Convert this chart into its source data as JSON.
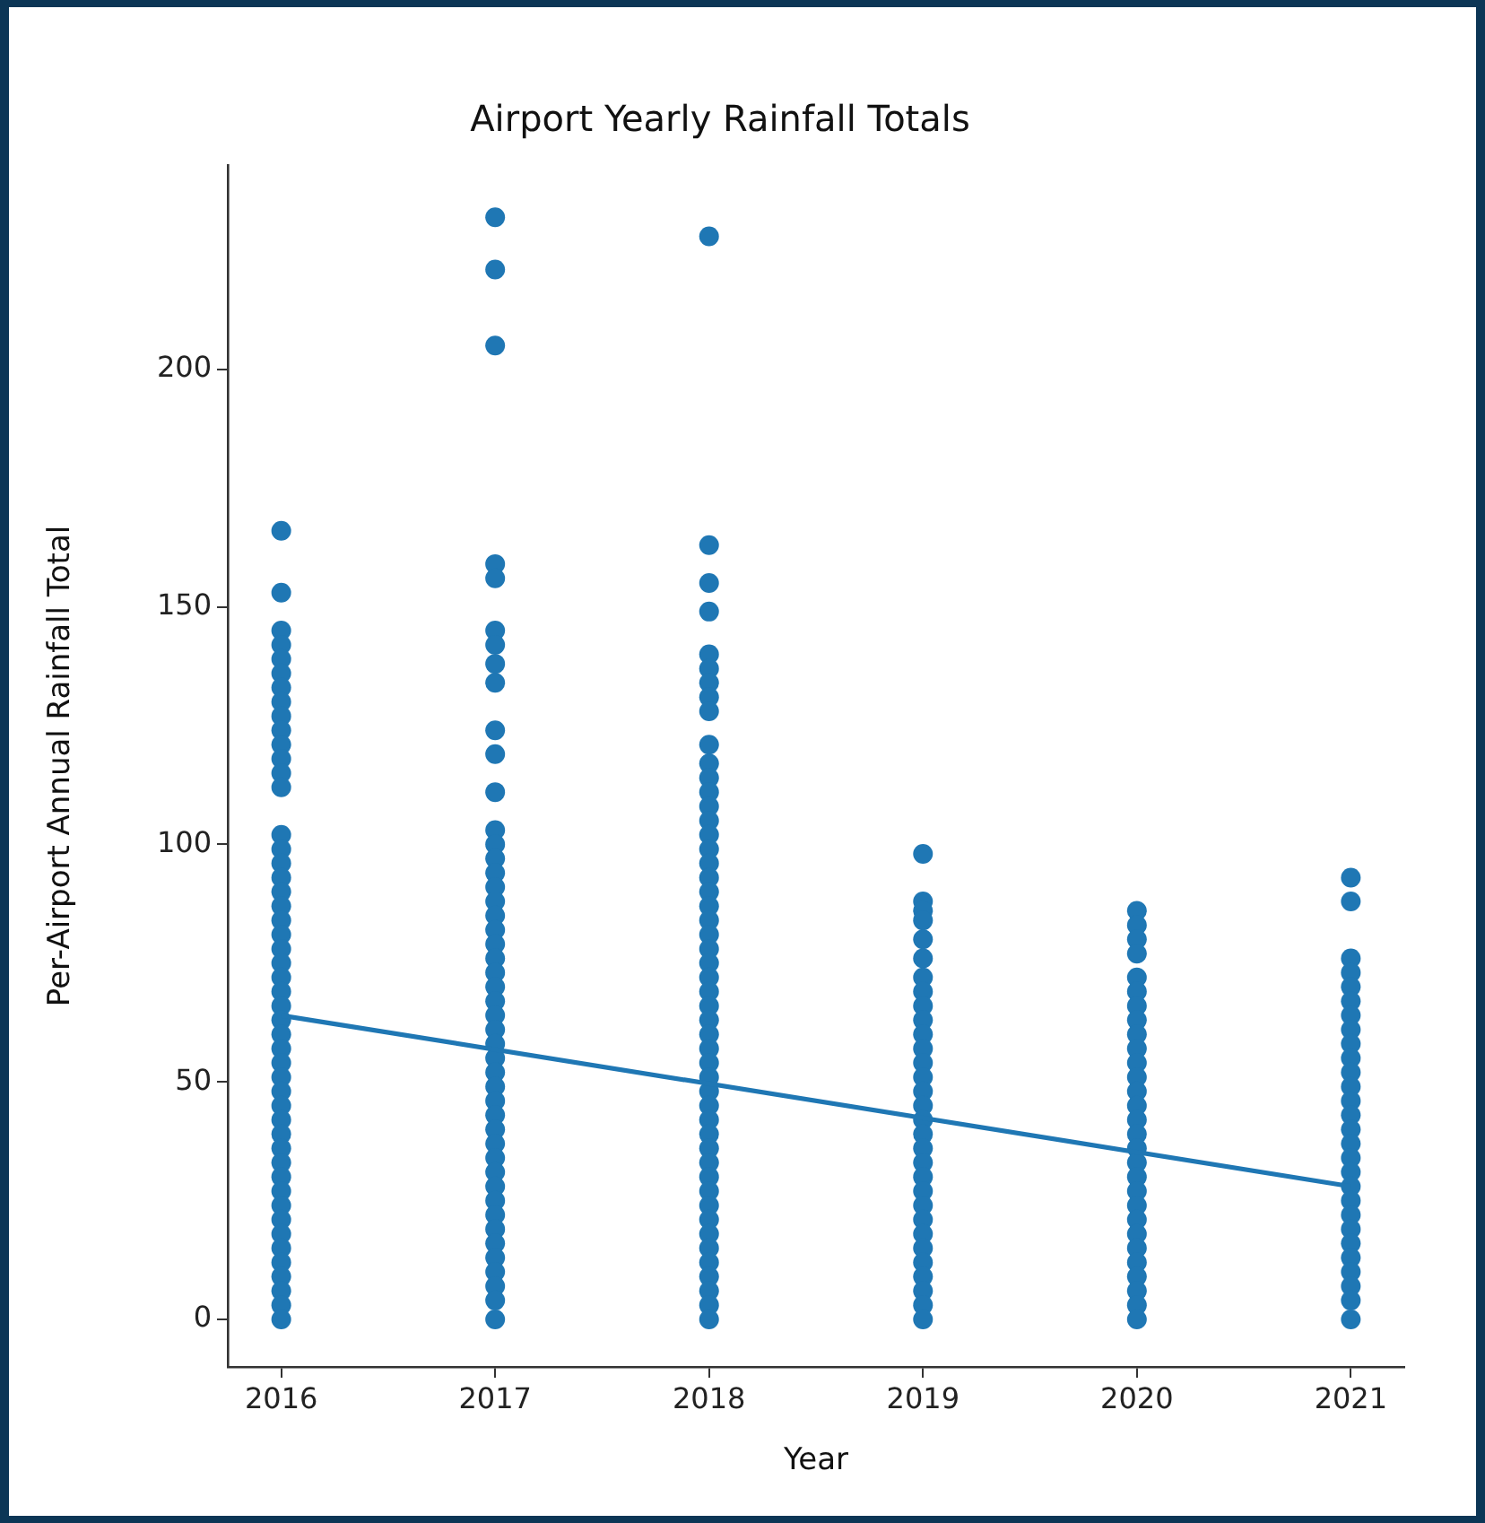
{
  "chart_data": {
    "type": "scatter",
    "title": "Airport Yearly Rainfall Totals",
    "xlabel": "Year",
    "ylabel": "Per-Airport Annual Rainfall Total",
    "xlim": [
      2015.75,
      2021.25
    ],
    "xticks": [
      2016,
      2017,
      2018,
      2019,
      2020,
      2021
    ],
    "ylim": [
      -10,
      243
    ],
    "yticks": [
      0,
      50,
      100,
      150,
      200
    ],
    "grid": false,
    "legend": false,
    "series": [
      {
        "marker": "circle",
        "color": "#1f77b4",
        "x": [
          2016,
          2016,
          2016,
          2016,
          2016,
          2016,
          2016,
          2016,
          2016,
          2016,
          2016,
          2016,
          2016,
          2016,
          2016,
          2016,
          2016,
          2016,
          2016,
          2016,
          2016,
          2016,
          2016,
          2016,
          2016,
          2016,
          2016,
          2016,
          2016,
          2016,
          2016,
          2016,
          2016,
          2016,
          2016,
          2016,
          2016,
          2016,
          2016,
          2016,
          2016,
          2016,
          2016,
          2016,
          2016,
          2016,
          2016,
          2016,
          2016
        ],
        "values": [
          166,
          153,
          145,
          142,
          139,
          136,
          133,
          130,
          127,
          124,
          121,
          118,
          115,
          112,
          102,
          99,
          96,
          93,
          90,
          87,
          84,
          81,
          78,
          75,
          72,
          69,
          66,
          63,
          60,
          57,
          54,
          51,
          48,
          45,
          42,
          39,
          36,
          33,
          30,
          27,
          24,
          21,
          18,
          15,
          12,
          9,
          6,
          3,
          0
        ]
      },
      {
        "marker": "circle",
        "color": "#1f77b4",
        "x": [
          2017,
          2017,
          2017,
          2017,
          2017,
          2017,
          2017,
          2017,
          2017,
          2017,
          2017,
          2017,
          2017,
          2017,
          2017,
          2017,
          2017,
          2017,
          2017,
          2017,
          2017,
          2017,
          2017,
          2017,
          2017,
          2017,
          2017,
          2017,
          2017,
          2017,
          2017,
          2017,
          2017,
          2017,
          2017,
          2017,
          2017,
          2017,
          2017,
          2017,
          2017,
          2017,
          2017,
          2017,
          2017,
          2017,
          2017
        ],
        "values": [
          232,
          221,
          205,
          159,
          156,
          145,
          142,
          138,
          134,
          124,
          119,
          111,
          103,
          100,
          97,
          94,
          91,
          88,
          85,
          82,
          79,
          76,
          73,
          70,
          67,
          64,
          61,
          58,
          55,
          52,
          49,
          46,
          43,
          40,
          37,
          34,
          31,
          28,
          25,
          22,
          19,
          16,
          13,
          10,
          7,
          4,
          0
        ]
      },
      {
        "marker": "circle",
        "color": "#1f77b4",
        "x": [
          2018,
          2018,
          2018,
          2018,
          2018,
          2018,
          2018,
          2018,
          2018,
          2018,
          2018,
          2018,
          2018,
          2018,
          2018,
          2018,
          2018,
          2018,
          2018,
          2018,
          2018,
          2018,
          2018,
          2018,
          2018,
          2018,
          2018,
          2018,
          2018,
          2018,
          2018,
          2018,
          2018,
          2018,
          2018,
          2018,
          2018,
          2018,
          2018,
          2018,
          2018,
          2018,
          2018,
          2018,
          2018,
          2018,
          2018,
          2018,
          2018,
          2018
        ],
        "values": [
          228,
          163,
          155,
          149,
          140,
          137,
          134,
          131,
          128,
          121,
          117,
          114,
          111,
          108,
          105,
          102,
          99,
          96,
          93,
          90,
          87,
          84,
          81,
          78,
          75,
          72,
          69,
          66,
          63,
          60,
          57,
          54,
          51,
          48,
          45,
          42,
          39,
          36,
          33,
          30,
          27,
          24,
          21,
          18,
          15,
          12,
          9,
          6,
          3,
          0
        ]
      },
      {
        "marker": "circle",
        "color": "#1f77b4",
        "x": [
          2019,
          2019,
          2019,
          2019,
          2019,
          2019,
          2019,
          2019,
          2019,
          2019,
          2019,
          2019,
          2019,
          2019,
          2019,
          2019,
          2019,
          2019,
          2019,
          2019,
          2019,
          2019,
          2019,
          2019,
          2019,
          2019,
          2019,
          2019,
          2019,
          2019,
          2019
        ],
        "values": [
          98,
          88,
          86,
          84,
          80,
          76,
          72,
          69,
          66,
          63,
          60,
          57,
          54,
          51,
          48,
          45,
          42,
          39,
          36,
          33,
          30,
          27,
          24,
          21,
          18,
          15,
          12,
          9,
          6,
          3,
          0
        ]
      },
      {
        "marker": "circle",
        "color": "#1f77b4",
        "x": [
          2020,
          2020,
          2020,
          2020,
          2020,
          2020,
          2020,
          2020,
          2020,
          2020,
          2020,
          2020,
          2020,
          2020,
          2020,
          2020,
          2020,
          2020,
          2020,
          2020,
          2020,
          2020,
          2020,
          2020,
          2020,
          2020,
          2020,
          2020,
          2020
        ],
        "values": [
          86,
          83,
          80,
          77,
          72,
          69,
          66,
          63,
          60,
          57,
          54,
          51,
          48,
          45,
          42,
          39,
          36,
          33,
          30,
          27,
          24,
          21,
          18,
          15,
          12,
          9,
          6,
          3,
          0
        ]
      },
      {
        "marker": "circle",
        "color": "#1f77b4",
        "x": [
          2021,
          2021,
          2021,
          2021,
          2021,
          2021,
          2021,
          2021,
          2021,
          2021,
          2021,
          2021,
          2021,
          2021,
          2021,
          2021,
          2021,
          2021,
          2021,
          2021,
          2021,
          2021,
          2021,
          2021,
          2021,
          2021,
          2021,
          2021
        ],
        "values": [
          93,
          88,
          76,
          73,
          70,
          67,
          64,
          61,
          58,
          55,
          52,
          49,
          46,
          43,
          40,
          37,
          34,
          31,
          28,
          25,
          22,
          19,
          16,
          13,
          10,
          7,
          4,
          0
        ]
      },
      {
        "type": "line",
        "marker": "none",
        "color": "#1f77b4",
        "x": [
          2016,
          2021
        ],
        "values": [
          64,
          28
        ]
      }
    ]
  }
}
